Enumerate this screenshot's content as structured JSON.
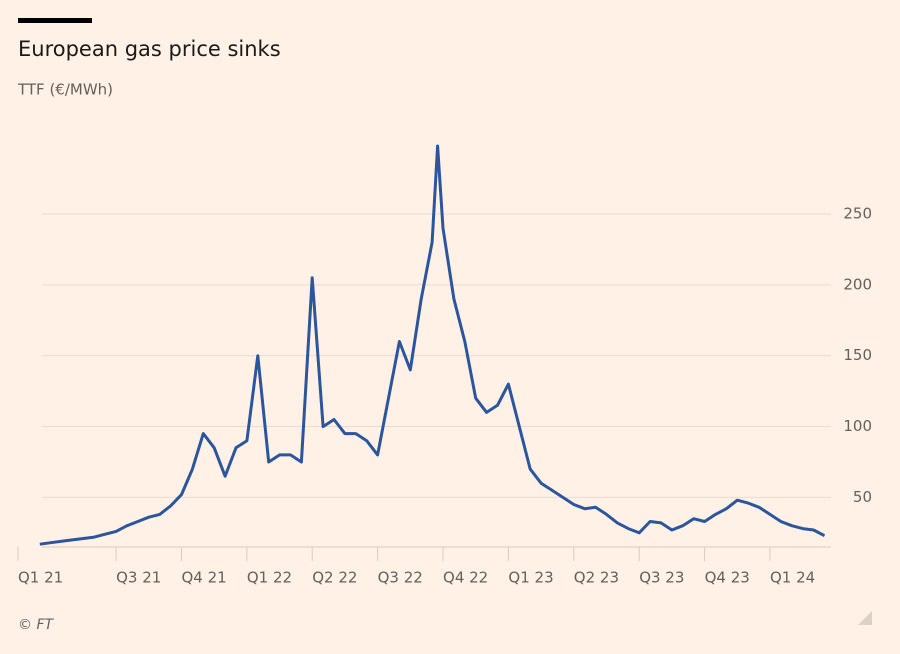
{
  "chart_data": {
    "type": "line",
    "title": "European gas price sinks",
    "subtitle": "TTF (€/MWh)",
    "source": "© FT",
    "x": [
      2.5,
      3,
      3.5,
      4,
      4.5,
      5,
      5.5,
      6,
      6.5,
      7,
      7.5,
      8,
      8.5,
      9,
      9.5,
      10,
      10.5,
      11,
      11.5,
      12,
      12.5,
      13,
      13.5,
      14,
      14.5,
      15,
      15.5,
      16,
      16.5,
      17,
      17.5,
      18,
      18.5,
      19,
      19.5,
      20,
      20.5,
      20.75,
      21,
      21.5,
      22,
      22.5,
      23,
      23.5,
      24,
      24.5,
      25,
      25.5,
      26,
      26.5,
      27,
      27.5,
      28,
      28.5,
      29,
      29.5,
      30,
      30.5,
      31,
      31.5,
      32,
      32.5,
      33,
      33.5,
      34,
      34.5,
      35,
      35.5,
      36,
      36.5,
      37,
      37.5,
      38,
      38.5
    ],
    "series": [
      {
        "name": "TTF",
        "color": "#2b559c",
        "values": [
          17,
          18,
          19,
          20,
          21,
          22,
          24,
          26,
          30,
          33,
          36,
          38,
          44,
          52,
          70,
          95,
          85,
          65,
          85,
          90,
          150,
          75,
          80,
          80,
          75,
          205,
          100,
          105,
          95,
          95,
          90,
          80,
          120,
          160,
          140,
          190,
          230,
          298,
          240,
          190,
          160,
          120,
          110,
          115,
          130,
          100,
          70,
          60,
          55,
          50,
          45,
          42,
          43,
          38,
          32,
          28,
          25,
          33,
          32,
          27,
          30,
          35,
          33,
          38,
          42,
          48,
          46,
          43,
          38,
          33,
          30,
          28,
          27,
          23
        ]
      }
    ],
    "xlim": [
      1.5,
      38.8
    ],
    "xticks": [
      {
        "value": 1.5,
        "label": "Q1 21"
      },
      {
        "value": 6,
        "label": "Q3 21"
      },
      {
        "value": 9,
        "label": "Q4 21"
      },
      {
        "value": 12,
        "label": "Q1 22"
      },
      {
        "value": 15,
        "label": "Q2 22"
      },
      {
        "value": 18,
        "label": "Q3 22"
      },
      {
        "value": 21,
        "label": "Q4 22"
      },
      {
        "value": 24,
        "label": "Q1 23"
      },
      {
        "value": 27,
        "label": "Q2 23"
      },
      {
        "value": 30,
        "label": "Q3 23"
      },
      {
        "value": 33,
        "label": "Q4 23"
      },
      {
        "value": 36,
        "label": "Q1 24"
      }
    ],
    "ylim": [
      15,
      310
    ],
    "yticks": [
      50,
      100,
      150,
      200,
      250
    ],
    "grid": true
  }
}
